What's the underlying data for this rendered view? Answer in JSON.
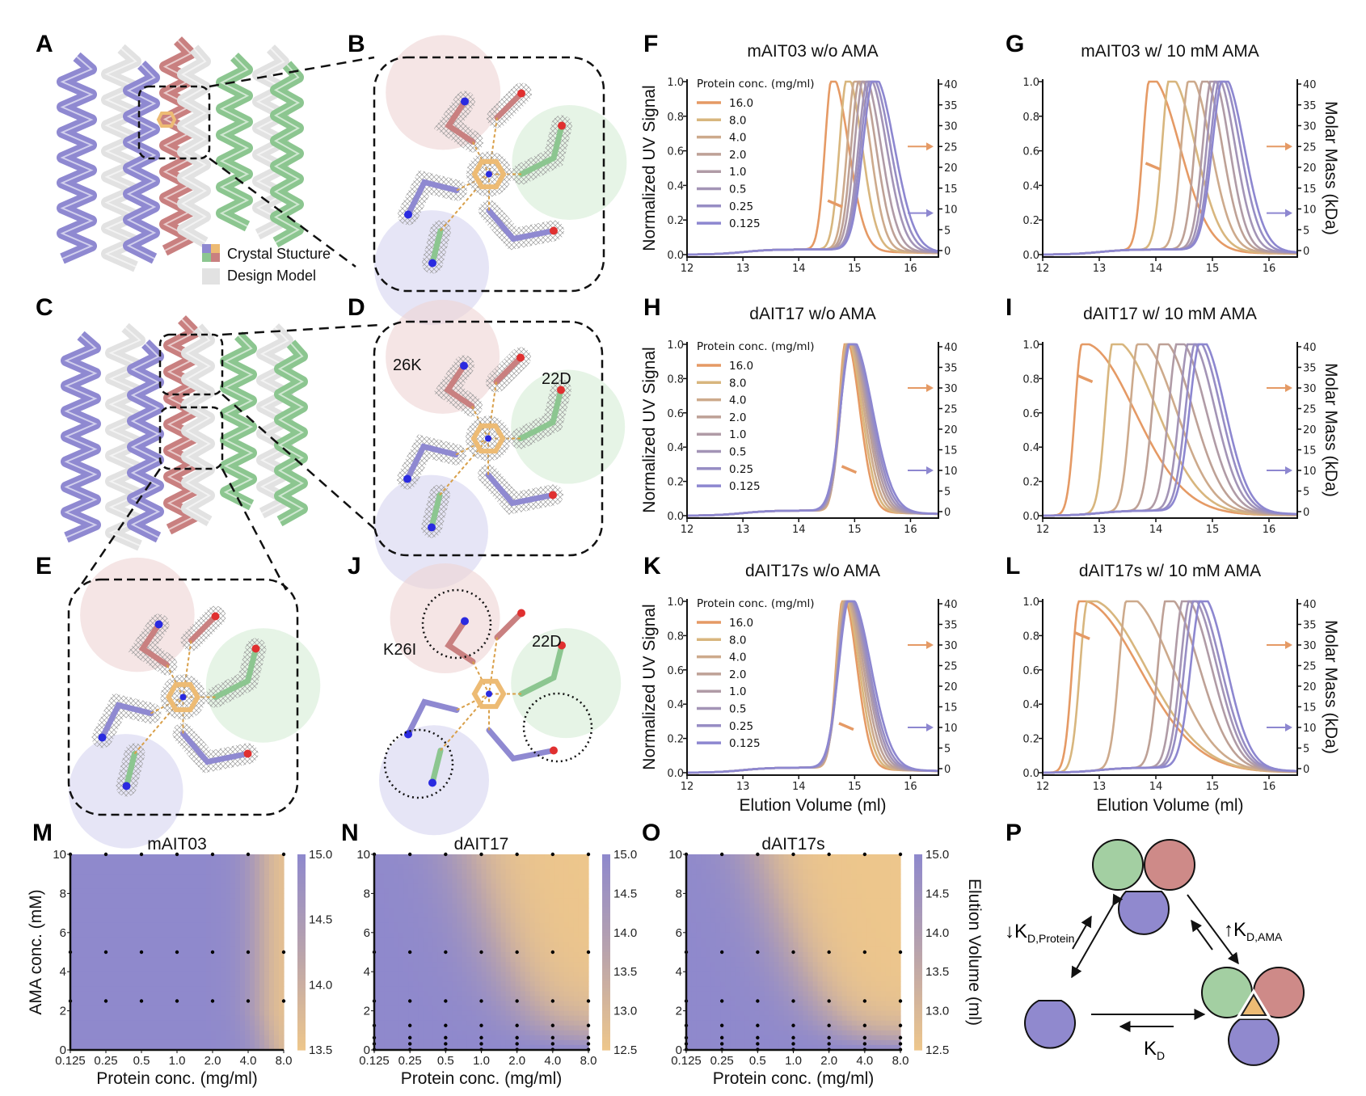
{
  "panel_letters": {
    "A": "A",
    "B": "B",
    "C": "C",
    "D": "D",
    "E": "E",
    "F": "F",
    "G": "G",
    "H": "H",
    "I": "I",
    "J": "J",
    "K": "K",
    "L": "L",
    "M": "M",
    "N": "N",
    "O": "O",
    "P": "P"
  },
  "structure_panels": {
    "legend": {
      "crystal": "Crystal Stucture",
      "design": "Design Model"
    },
    "D_labels": [
      "26K",
      "22D"
    ],
    "J_labels": [
      "K26I",
      "22D"
    ],
    "colors": {
      "chainA": "#8F89D1",
      "chainB": "#C98080",
      "chainC": "#8CC690",
      "ligand": "#EDBB74",
      "design": "#E2E2E2"
    }
  },
  "series_colors": [
    "#E59A65",
    "#D8B67E",
    "#CDAA8C",
    "#BEA196",
    "#B09BA6",
    "#A394B6",
    "#978DC4",
    "#8D87D0"
  ],
  "chart_data": [
    {
      "panel": "F",
      "type": "line",
      "title": "mAIT03 w/o AMA",
      "ylabel": "Normalized UV Signal",
      "y2label": "",
      "xlabel": "",
      "xlim": [
        12,
        16.5
      ],
      "xticks": [
        "12",
        "13",
        "14",
        "15",
        "16"
      ],
      "ylim": [
        0,
        1
      ],
      "yticks": [
        "0.0",
        "0.2",
        "0.4",
        "0.6",
        "0.8",
        "1.0"
      ],
      "y2lim": [
        0,
        40
      ],
      "y2ticks": [
        "0",
        "5",
        "10",
        "15",
        "20",
        "25",
        "30",
        "35",
        "40"
      ],
      "legend": {
        "title": "Protein conc. (mg/ml)",
        "position": "top-left"
      },
      "series": [
        {
          "name": "16.0",
          "peak": 14.6
        },
        {
          "name": "8.0",
          "peak": 14.87
        },
        {
          "name": "4.0",
          "peak": 15.02
        },
        {
          "name": "2.0",
          "peak": 15.1
        },
        {
          "name": "1.0",
          "peak": 15.17
        },
        {
          "name": "0.5",
          "peak": 15.25
        },
        {
          "name": "0.25",
          "peak": 15.3
        },
        {
          "name": "0.125",
          "peak": 15.35
        }
      ],
      "mass_readout": {
        "series": "16.0",
        "kDa": 11
      },
      "reference_arrows_kDa": [
        25,
        9
      ]
    },
    {
      "panel": "G",
      "type": "line",
      "title": "mAIT03 w/ 10 mM AMA",
      "ylabel": "",
      "y2label": "Molar Mass (kDa)",
      "xlabel": "",
      "xlim": [
        12,
        16.5
      ],
      "xticks": [
        "12",
        "13",
        "14",
        "15",
        "16"
      ],
      "ylim": [
        0,
        1
      ],
      "yticks": [
        "0.0",
        "0.2",
        "0.4",
        "0.6",
        "0.8",
        "1.0"
      ],
      "y2lim": [
        0,
        40
      ],
      "y2ticks": [
        "0",
        "5",
        "10",
        "15",
        "20",
        "25",
        "30",
        "35",
        "40"
      ],
      "series": [
        {
          "name": "16.0",
          "peak": 13.9
        },
        {
          "name": "8.0",
          "peak": 14.25
        },
        {
          "name": "4.0",
          "peak": 14.6
        },
        {
          "name": "2.0",
          "peak": 14.85
        },
        {
          "name": "1.0",
          "peak": 15.0
        },
        {
          "name": "0.5",
          "peak": 15.08
        },
        {
          "name": "0.25",
          "peak": 15.15
        },
        {
          "name": "0.125",
          "peak": 15.2
        }
      ],
      "mass_readout": {
        "series": "16.0",
        "kDa": 20
      },
      "reference_arrows_kDa": [
        25,
        9
      ]
    },
    {
      "panel": "H",
      "type": "line",
      "title": "dAIT17 w/o AMA",
      "ylabel": "Normalized UV Signal",
      "y2label": "",
      "xlabel": "",
      "xlim": [
        12,
        16.5
      ],
      "xticks": [
        "12",
        "13",
        "14",
        "15",
        "16"
      ],
      "ylim": [
        0,
        1
      ],
      "yticks": [
        "0.0",
        "0.2",
        "0.4",
        "0.6",
        "0.8",
        "1.0"
      ],
      "y2lim": [
        0,
        40
      ],
      "y2ticks": [
        "0",
        "5",
        "10",
        "15",
        "20",
        "25",
        "30",
        "35",
        "40"
      ],
      "legend": {
        "title": "Protein conc. (mg/ml)",
        "position": "top-left"
      },
      "series": [
        {
          "name": "16.0",
          "peak": 14.85
        },
        {
          "name": "8.0",
          "peak": 14.87
        },
        {
          "name": "4.0",
          "peak": 14.89
        },
        {
          "name": "2.0",
          "peak": 14.91
        },
        {
          "name": "1.0",
          "peak": 14.92
        },
        {
          "name": "0.5",
          "peak": 14.93
        },
        {
          "name": "0.25",
          "peak": 14.94
        },
        {
          "name": "0.125",
          "peak": 14.95
        }
      ],
      "mass_readout": {
        "series": "16.0",
        "kDa": 10
      },
      "reference_arrows_kDa": [
        30,
        10
      ]
    },
    {
      "panel": "I",
      "type": "line",
      "title": "dAIT17 w/ 10 mM AMA",
      "ylabel": "",
      "y2label": "Molar Mass (kDa)",
      "xlabel": "",
      "xlim": [
        12,
        16.5
      ],
      "xticks": [
        "12",
        "13",
        "14",
        "15",
        "16"
      ],
      "ylim": [
        0,
        1
      ],
      "yticks": [
        "0.0",
        "0.2",
        "0.4",
        "0.6",
        "0.8",
        "1.0"
      ],
      "y2lim": [
        0,
        40
      ],
      "y2ticks": [
        "0",
        "5",
        "10",
        "15",
        "20",
        "25",
        "30",
        "35",
        "40"
      ],
      "series": [
        {
          "name": "16.0",
          "peak": 12.7
        },
        {
          "name": "8.0",
          "peak": 13.25
        },
        {
          "name": "4.0",
          "peak": 13.7
        },
        {
          "name": "2.0",
          "peak": 14.1
        },
        {
          "name": "1.0",
          "peak": 14.4
        },
        {
          "name": "0.5",
          "peak": 14.6
        },
        {
          "name": "0.25",
          "peak": 14.72
        },
        {
          "name": "0.125",
          "peak": 14.8
        }
      ],
      "mass_readout": {
        "series": "16.0",
        "kDa": 32
      },
      "reference_arrows_kDa": [
        30,
        10
      ]
    },
    {
      "panel": "K",
      "type": "line",
      "title": "dAIT17s w/o AMA",
      "ylabel": "Normalized UV Signal",
      "y2label": "",
      "xlabel": "Elution Volume (ml)",
      "xlim": [
        12,
        16.5
      ],
      "xticks": [
        "12",
        "13",
        "14",
        "15",
        "16"
      ],
      "ylim": [
        0,
        1
      ],
      "yticks": [
        "0.0",
        "0.2",
        "0.4",
        "0.6",
        "0.8",
        "1.0"
      ],
      "y2lim": [
        0,
        40
      ],
      "y2ticks": [
        "0",
        "5",
        "10",
        "15",
        "20",
        "25",
        "30",
        "35",
        "40"
      ],
      "legend": {
        "title": "Protein conc. (mg/ml)",
        "position": "top-left"
      },
      "series": [
        {
          "name": "16.0",
          "peak": 14.8
        },
        {
          "name": "8.0",
          "peak": 14.82
        },
        {
          "name": "4.0",
          "peak": 14.84
        },
        {
          "name": "2.0",
          "peak": 14.86
        },
        {
          "name": "1.0",
          "peak": 14.88
        },
        {
          "name": "0.5",
          "peak": 14.89
        },
        {
          "name": "0.25",
          "peak": 14.9
        },
        {
          "name": "0.125",
          "peak": 14.92
        }
      ],
      "mass_readout": {
        "series": "16.0",
        "kDa": 10
      },
      "reference_arrows_kDa": [
        30,
        10
      ]
    },
    {
      "panel": "L",
      "type": "line",
      "title": "dAIT17s w/ 10 mM AMA",
      "ylabel": "",
      "y2label": "Molar Mass (kDa)",
      "xlabel": "Elution Volume (ml)",
      "xlim": [
        12,
        16.5
      ],
      "xticks": [
        "12",
        "13",
        "14",
        "15",
        "16"
      ],
      "ylim": [
        0,
        1
      ],
      "yticks": [
        "0.0",
        "0.2",
        "0.4",
        "0.6",
        "0.8",
        "1.0"
      ],
      "y2lim": [
        0,
        40
      ],
      "y2ticks": [
        "0",
        "5",
        "10",
        "15",
        "20",
        "25",
        "30",
        "35",
        "40"
      ],
      "series": [
        {
          "name": "16.0",
          "peak": 12.65
        },
        {
          "name": "8.0",
          "peak": 12.8
        },
        {
          "name": "4.0",
          "peak": 13.5
        },
        {
          "name": "2.0",
          "peak": 14.2
        },
        {
          "name": "1.0",
          "peak": 14.5
        },
        {
          "name": "0.5",
          "peak": 14.62
        },
        {
          "name": "0.25",
          "peak": 14.7
        },
        {
          "name": "0.125",
          "peak": 14.82
        }
      ],
      "mass_readout": {
        "series": "16.0",
        "kDa": 32
      },
      "reference_arrows_kDa": [
        30,
        10
      ]
    },
    {
      "panel": "M",
      "type": "heatmap",
      "title": "mAIT03",
      "xlabel": "Protein conc. (mg/ml)",
      "ylabel": "AMA conc. (mM)",
      "colorbar_label": "",
      "xticks": [
        "0.125",
        "0.25",
        "0.5",
        "1.0",
        "2.0",
        "4.0",
        "8.0"
      ],
      "ylim": [
        0,
        10
      ],
      "yticks": [
        "0",
        "2",
        "4",
        "6",
        "8",
        "10"
      ],
      "colorbar": {
        "range": [
          13.5,
          15.0
        ],
        "ticks": [
          "13.5",
          "14.0",
          "14.5",
          "15.0"
        ],
        "low_color": "#EDC68C",
        "high_color": "#8F89CC"
      },
      "sample_ama_mM": [
        10,
        5,
        2.5
      ]
    },
    {
      "panel": "N",
      "type": "heatmap",
      "title": "dAIT17",
      "xlabel": "Protein conc. (mg/ml)",
      "ylabel": "",
      "colorbar_label": "",
      "xticks": [
        "0.125",
        "0.25",
        "0.5",
        "1.0",
        "2.0",
        "4.0",
        "8.0"
      ],
      "ylim": [
        0,
        10
      ],
      "yticks": [
        "0",
        "2",
        "4",
        "6",
        "8",
        "10"
      ],
      "colorbar": {
        "range": [
          12.5,
          15.0
        ],
        "ticks": [
          "12.5",
          "13.0",
          "13.5",
          "14.0",
          "14.5",
          "15.0"
        ],
        "low_color": "#EDC68C",
        "high_color": "#8F89CC"
      },
      "sample_ama_mM": [
        10,
        5,
        2.5,
        1.25,
        0.625,
        0.3125
      ]
    },
    {
      "panel": "O",
      "type": "heatmap",
      "title": "dAIT17s",
      "xlabel": "Protein conc. (mg/ml)",
      "ylabel": "",
      "colorbar_label": "Elution Volume (ml)",
      "xticks": [
        "0.125",
        "0.25",
        "0.5",
        "1.0",
        "2.0",
        "4.0",
        "8.0"
      ],
      "ylim": [
        0,
        10
      ],
      "yticks": [
        "0",
        "2",
        "4",
        "6",
        "8",
        "10"
      ],
      "colorbar": {
        "range": [
          12.5,
          15.0
        ],
        "ticks": [
          "12.5",
          "13.0",
          "13.5",
          "14.0",
          "14.5",
          "15.0"
        ],
        "low_color": "#EDC68C",
        "high_color": "#8F89CC"
      },
      "sample_ama_mM": [
        10,
        5,
        2.5,
        1.25,
        0.625,
        0.3125
      ]
    }
  ],
  "scheme": {
    "left_label": {
      "arrow": "↓",
      "K": "K",
      "sub": "D,Protein"
    },
    "right_label": {
      "arrow": "↑",
      "K": "K",
      "sub": "D,AMA"
    },
    "bottom_label": {
      "K": "K",
      "sub": "D"
    }
  }
}
